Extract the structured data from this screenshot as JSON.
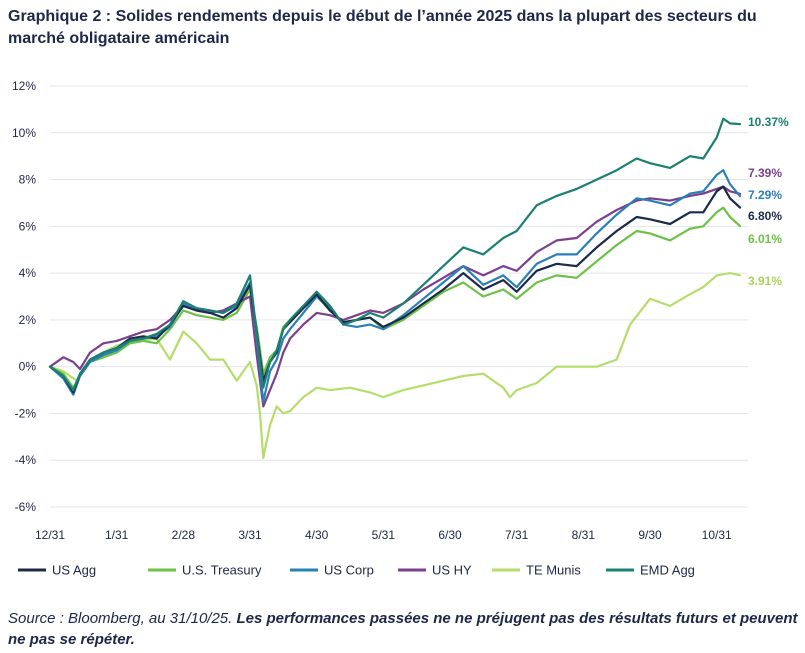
{
  "title": "Graphique 2 : Solides rendements depuis le début de l’année 2025 dans la plupart des secteurs du marché obligataire américain",
  "source": {
    "lead": "Source : Bloomberg, au 31/10/25.",
    "note": "Les performances passées ne ne préjugent pas des résultats futurs et peuvent ne pas se répéter."
  },
  "chart_data": {
    "type": "line",
    "title": "Graphique 2 : Solides rendements depuis le début de l’année 2025 dans la plupart des secteurs du marché obligataire américain",
    "xlabel": "",
    "ylabel": "",
    "ylim": [
      -6,
      12
    ],
    "y_ticks": [
      12,
      10,
      8,
      6,
      4,
      2,
      0,
      -2,
      -4,
      -6
    ],
    "y_tick_labels": [
      "12%",
      "10%",
      "8%",
      "6%",
      "4%",
      "2%",
      "0%",
      "-2%",
      "-4%",
      "-6%"
    ],
    "x_ticks": [
      0,
      1,
      2,
      3,
      4,
      5,
      6,
      7,
      8,
      9,
      10
    ],
    "x_tick_labels": [
      "12/31",
      "1/31",
      "2/28",
      "3/31",
      "4/30",
      "5/31",
      "6/30",
      "7/31",
      "8/31",
      "9/30",
      "10/31"
    ],
    "x_unit": "months since 12/31/2024",
    "legend_position": "bottom",
    "series": [
      {
        "name": "US Agg",
        "color": "#1b2a4a",
        "end_label": "6.80%",
        "x": [
          0,
          0.2,
          0.35,
          0.45,
          0.6,
          0.8,
          1,
          1.2,
          1.4,
          1.6,
          1.8,
          2,
          2.2,
          2.4,
          2.6,
          2.8,
          3,
          3.1,
          3.2,
          3.3,
          3.4,
          3.5,
          3.6,
          3.8,
          4,
          4.2,
          4.4,
          4.6,
          4.8,
          5,
          5.3,
          5.6,
          5.9,
          6.2,
          6.5,
          6.8,
          7,
          7.3,
          7.6,
          7.9,
          8.2,
          8.5,
          8.8,
          9,
          9.3,
          9.6,
          9.8,
          10,
          10.1,
          10.2,
          10.35
        ],
        "y": [
          0,
          -0.4,
          -1.1,
          -0.3,
          0.3,
          0.6,
          0.8,
          1.2,
          1.3,
          1.2,
          1.8,
          2.6,
          2.4,
          2.3,
          2.1,
          2.5,
          3.5,
          1.5,
          -0.6,
          0.2,
          0.6,
          1.6,
          1.9,
          2.5,
          3.1,
          2.4,
          1.9,
          2.0,
          2.1,
          1.7,
          2.1,
          2.7,
          3.3,
          4.0,
          3.3,
          3.7,
          3.2,
          4.1,
          4.4,
          4.3,
          5.1,
          5.8,
          6.4,
          6.3,
          6.1,
          6.6,
          6.6,
          7.5,
          7.7,
          7.2,
          6.8
        ]
      },
      {
        "name": "U.S. Treasury",
        "color": "#6ec046",
        "end_label": "6.01%",
        "x": [
          0,
          0.2,
          0.35,
          0.45,
          0.6,
          0.8,
          1,
          1.2,
          1.4,
          1.6,
          1.8,
          2,
          2.2,
          2.4,
          2.6,
          2.8,
          3,
          3.1,
          3.2,
          3.3,
          3.4,
          3.5,
          3.6,
          3.8,
          4,
          4.2,
          4.4,
          4.6,
          4.8,
          5,
          5.3,
          5.6,
          5.9,
          6.2,
          6.5,
          6.8,
          7,
          7.3,
          7.6,
          7.9,
          8.2,
          8.5,
          8.8,
          9,
          9.3,
          9.6,
          9.8,
          10,
          10.1,
          10.2,
          10.35
        ],
        "y": [
          0,
          -0.3,
          -0.9,
          -0.4,
          0.2,
          0.4,
          0.6,
          1.0,
          1.1,
          1.0,
          1.6,
          2.4,
          2.2,
          2.1,
          2.0,
          2.3,
          3.3,
          1.7,
          -0.3,
          0.4,
          0.7,
          1.7,
          2.0,
          2.5,
          3.0,
          2.4,
          1.9,
          2.0,
          2.1,
          1.6,
          2.0,
          2.6,
          3.2,
          3.6,
          3.0,
          3.3,
          2.9,
          3.6,
          3.9,
          3.8,
          4.5,
          5.2,
          5.8,
          5.7,
          5.4,
          5.9,
          6.0,
          6.6,
          6.8,
          6.4,
          6.01
        ]
      },
      {
        "name": "US Corp",
        "color": "#2a7fb8",
        "end_label": "7.29%",
        "x": [
          0,
          0.2,
          0.35,
          0.45,
          0.6,
          0.8,
          1,
          1.2,
          1.4,
          1.6,
          1.8,
          2,
          2.2,
          2.4,
          2.6,
          2.8,
          3,
          3.1,
          3.2,
          3.3,
          3.4,
          3.5,
          3.6,
          3.8,
          4,
          4.2,
          4.4,
          4.6,
          4.8,
          5,
          5.3,
          5.6,
          5.9,
          6.2,
          6.5,
          6.8,
          7,
          7.3,
          7.6,
          7.9,
          8.2,
          8.5,
          8.8,
          9,
          9.3,
          9.6,
          9.8,
          10,
          10.1,
          10.2,
          10.35
        ],
        "y": [
          0,
          -0.5,
          -1.2,
          -0.4,
          0.2,
          0.5,
          0.7,
          1.1,
          1.2,
          1.3,
          1.7,
          2.7,
          2.5,
          2.4,
          2.3,
          2.6,
          3.6,
          1.3,
          -1.5,
          -0.2,
          0.3,
          1.2,
          1.6,
          2.3,
          3.0,
          2.5,
          1.8,
          1.7,
          1.8,
          1.6,
          2.2,
          2.9,
          3.6,
          4.3,
          3.5,
          3.9,
          3.4,
          4.4,
          4.8,
          4.8,
          5.7,
          6.5,
          7.2,
          7.1,
          6.9,
          7.4,
          7.5,
          8.2,
          8.4,
          7.8,
          7.29
        ]
      },
      {
        "name": "US HY",
        "color": "#7b3f8e",
        "end_label": "7.39%",
        "x": [
          0,
          0.2,
          0.35,
          0.45,
          0.6,
          0.8,
          1,
          1.2,
          1.4,
          1.6,
          1.8,
          2,
          2.2,
          2.4,
          2.6,
          2.8,
          3,
          3.1,
          3.2,
          3.3,
          3.4,
          3.5,
          3.6,
          3.8,
          4,
          4.2,
          4.4,
          4.6,
          4.8,
          5,
          5.3,
          5.6,
          5.9,
          6.2,
          6.5,
          6.8,
          7,
          7.3,
          7.6,
          7.9,
          8.2,
          8.5,
          8.8,
          9,
          9.3,
          9.6,
          9.8,
          10,
          10.1,
          10.2,
          10.35
        ],
        "y": [
          0,
          0.4,
          0.2,
          -0.1,
          0.6,
          1.0,
          1.1,
          1.3,
          1.5,
          1.6,
          2.0,
          2.6,
          2.4,
          2.3,
          2.4,
          2.7,
          3.0,
          0.5,
          -1.7,
          -1.0,
          -0.3,
          0.6,
          1.2,
          1.8,
          2.3,
          2.2,
          2.0,
          2.2,
          2.4,
          2.3,
          2.7,
          3.3,
          3.8,
          4.3,
          3.9,
          4.3,
          4.1,
          4.9,
          5.4,
          5.5,
          6.2,
          6.7,
          7.1,
          7.2,
          7.1,
          7.3,
          7.4,
          7.6,
          7.7,
          7.5,
          7.39
        ]
      },
      {
        "name": "TE Munis",
        "color": "#b5dd6a",
        "end_label": "3.91%",
        "x": [
          0,
          0.2,
          0.4,
          0.6,
          0.8,
          1,
          1.3,
          1.6,
          1.8,
          2,
          2.2,
          2.4,
          2.6,
          2.8,
          2.9,
          3,
          3.1,
          3.15,
          3.2,
          3.3,
          3.4,
          3.5,
          3.6,
          3.8,
          4,
          4.2,
          4.5,
          4.8,
          5,
          5.3,
          5.6,
          5.9,
          6.2,
          6.5,
          6.8,
          6.9,
          7,
          7.3,
          7.6,
          7.9,
          8.2,
          8.5,
          8.7,
          9,
          9.3,
          9.6,
          9.8,
          10,
          10.2,
          10.35
        ],
        "y": [
          0,
          -0.2,
          -0.6,
          0.2,
          0.6,
          0.9,
          1.1,
          1.2,
          0.3,
          1.5,
          1.0,
          0.3,
          0.3,
          -0.6,
          -0.2,
          0.2,
          -0.8,
          -2.0,
          -3.9,
          -2.5,
          -1.7,
          -2.0,
          -1.9,
          -1.3,
          -0.9,
          -1.0,
          -0.9,
          -1.1,
          -1.3,
          -1.0,
          -0.8,
          -0.6,
          -0.4,
          -0.3,
          -0.9,
          -1.3,
          -1.0,
          -0.7,
          0.0,
          0.0,
          0.0,
          0.3,
          1.8,
          2.9,
          2.6,
          3.1,
          3.4,
          3.9,
          4.0,
          3.91
        ]
      },
      {
        "name": "EMD Agg",
        "color": "#1a8070",
        "end_label": "10.37%",
        "x": [
          0,
          0.2,
          0.35,
          0.45,
          0.6,
          0.8,
          1,
          1.2,
          1.4,
          1.6,
          1.8,
          2,
          2.2,
          2.4,
          2.6,
          2.8,
          3,
          3.1,
          3.2,
          3.3,
          3.4,
          3.5,
          3.6,
          3.8,
          4,
          4.2,
          4.4,
          4.6,
          4.8,
          5,
          5.3,
          5.6,
          5.9,
          6.2,
          6.5,
          6.8,
          7,
          7.3,
          7.6,
          7.9,
          8.2,
          8.5,
          8.8,
          9,
          9.3,
          9.6,
          9.8,
          10,
          10.1,
          10.2,
          10.35
        ],
        "y": [
          0,
          -0.4,
          -1.0,
          -0.3,
          0.3,
          0.6,
          0.8,
          1.1,
          1.2,
          1.4,
          1.8,
          2.8,
          2.5,
          2.4,
          2.3,
          2.7,
          3.9,
          1.4,
          -0.9,
          0.2,
          0.7,
          1.6,
          2.0,
          2.6,
          3.2,
          2.6,
          1.8,
          2.0,
          2.3,
          2.1,
          2.7,
          3.5,
          4.3,
          5.1,
          4.8,
          5.5,
          5.8,
          6.9,
          7.3,
          7.6,
          8.0,
          8.4,
          8.9,
          8.7,
          8.5,
          9.0,
          8.9,
          9.8,
          10.6,
          10.4,
          10.37
        ]
      }
    ]
  }
}
